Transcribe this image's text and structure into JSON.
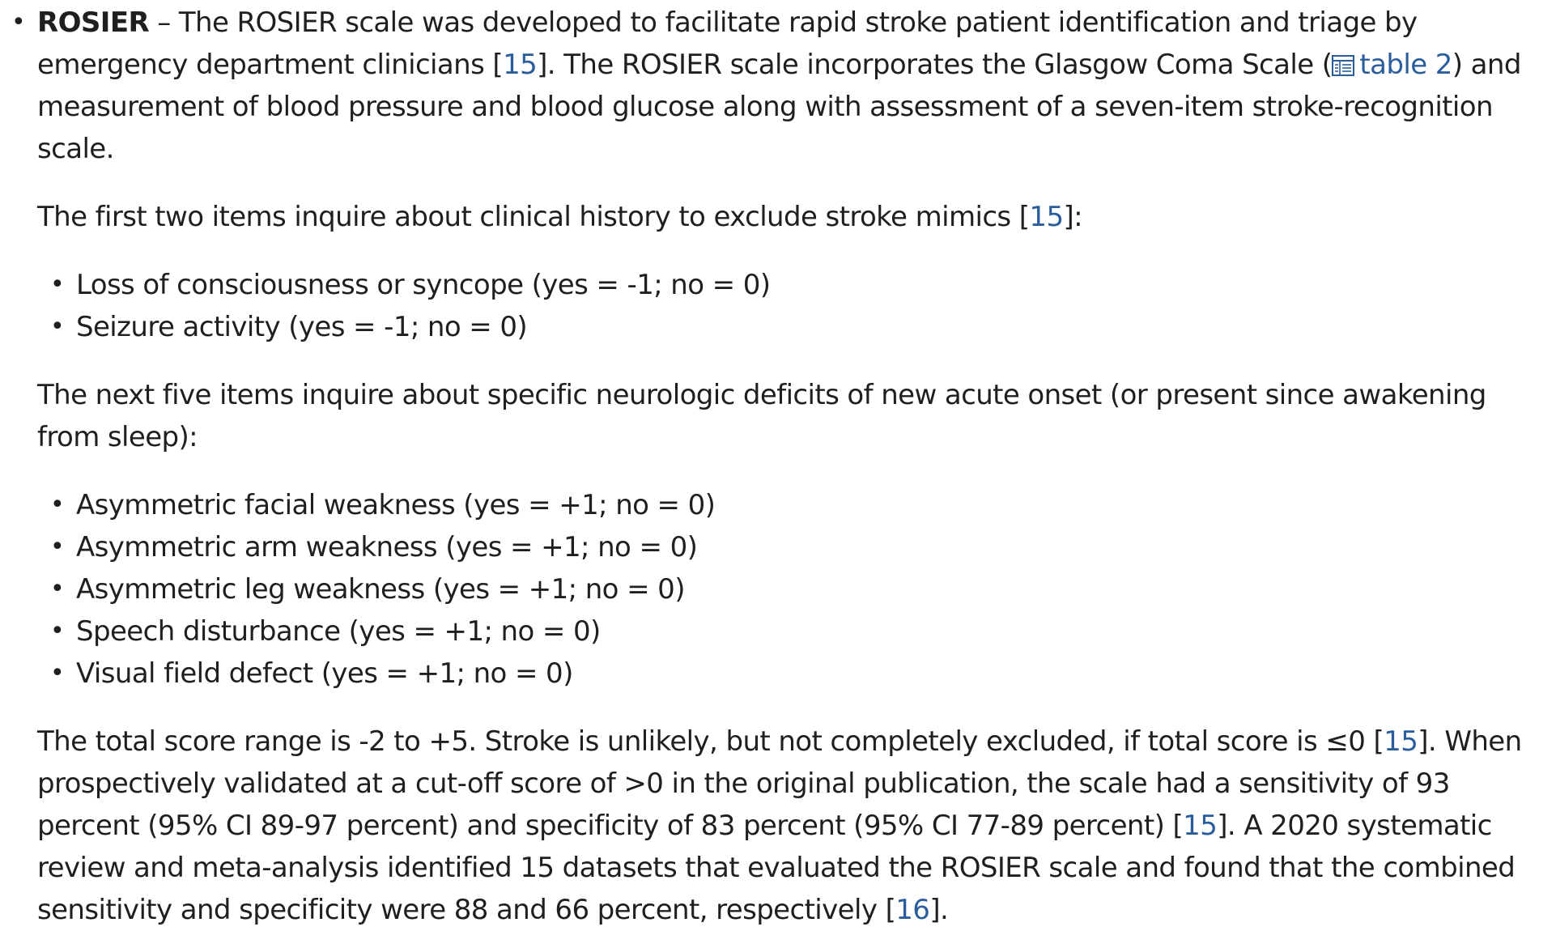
{
  "rosier": {
    "term": "ROSIER",
    "intro_1": " – The ROSIER scale was developed to facilitate rapid stroke patient identification and triage by emergency department clinicians [",
    "ref_a": "15",
    "intro_2": "]. The ROSIER scale incorporates the Glasgow Coma Scale (",
    "table_link": "table 2",
    "intro_3": ") and measurement of blood pressure and blood glucose along with assessment of a seven-item stroke-recognition scale.",
    "history_1": "The first two items inquire about clinical history to exclude stroke mimics [",
    "history_ref": "15",
    "history_2": "]:",
    "history_items": [
      "Loss of consciousness or syncope (yes = -1; no = 0)",
      "Seizure activity (yes = -1; no = 0)"
    ],
    "deficits_text": "The next five items inquire about specific neurologic deficits of new acute onset (or present since awakening from sleep):",
    "deficit_items": [
      "Asymmetric facial weakness (yes = +1; no = 0)",
      "Asymmetric arm weakness (yes = +1; no = 0)",
      "Asymmetric leg weakness (yes = +1; no = 0)",
      "Speech disturbance (yes = +1; no = 0)",
      "Visual field defect (yes = +1; no = 0)"
    ],
    "score_1": "The total score range is -2 to +5. Stroke is unlikely, but not completely excluded, if total score is ≤0 [",
    "score_ref_a": "15",
    "score_2": "]. When prospectively validated at a cut-off score of >0 in the original publication, the scale had a sensitivity of 93 percent (95% CI 89-97 percent) and specificity of 83 percent (95% CI 77-89 percent) [",
    "score_ref_b": "15",
    "score_3": "]. A 2020 systematic review and meta-analysis identified 15 datasets that evaluated the ROSIER scale and found that the combined sensitivity and specificity were 88 and 66 percent, respectively [",
    "score_ref_c": "16",
    "score_4": "]."
  },
  "icons": {
    "table": "table-icon"
  },
  "colors": {
    "text": "#1f1f1f",
    "link": "#2a5d9c"
  }
}
